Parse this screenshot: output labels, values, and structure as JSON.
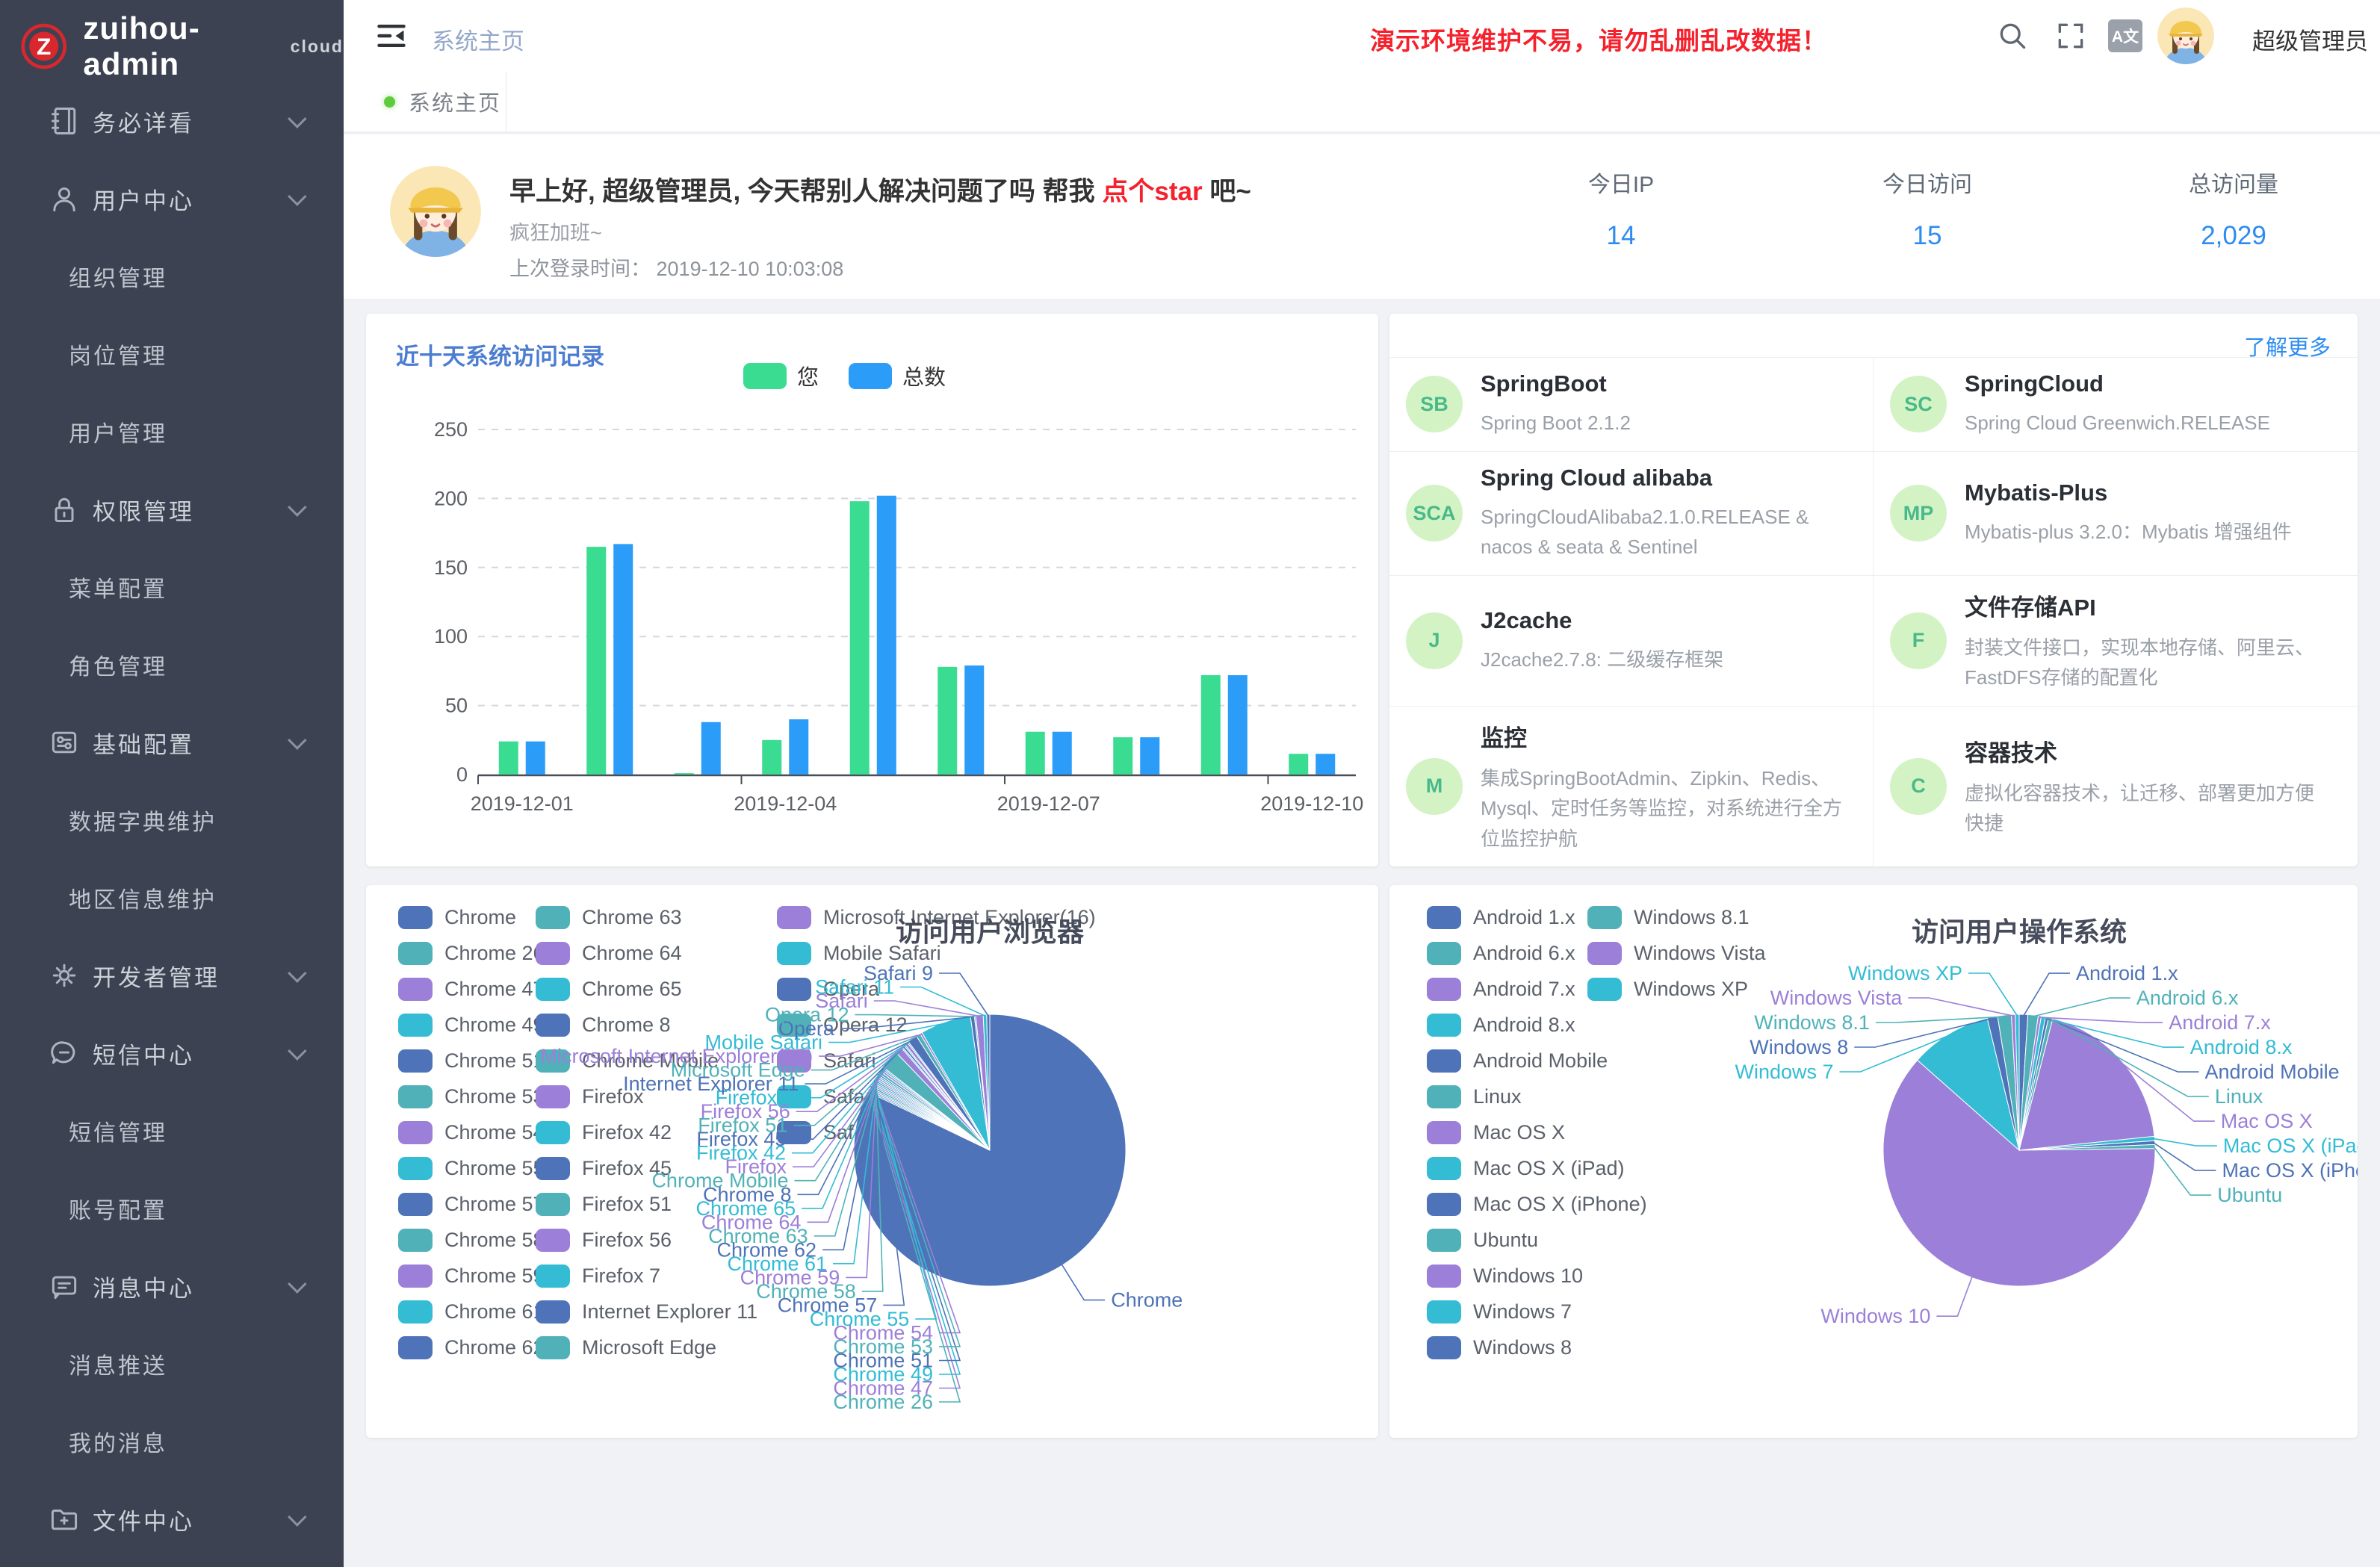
{
  "app": {
    "name": "zuihou-admin",
    "badge": "cloud",
    "logo_letter": "Z"
  },
  "palette": [
    "#4e73b8",
    "#50b2b8",
    "#9c7fd8",
    "#33bcd4"
  ],
  "header": {
    "breadcrumb": "系统主页",
    "warning": "演示环境维护不易，请勿乱删乱改数据！",
    "username": "超级管理员",
    "font_chip": "A文"
  },
  "tabbar": {
    "active": "系统主页"
  },
  "greeting": {
    "hello": "早上好, 超级管理员, 今天帮别人解决问题了吗 帮我",
    "star": "点个star",
    "suffix": "吧~",
    "mood": "疯狂加班~",
    "last_login_label": "上次登录时间：",
    "last_login_value": "2019-12-10 10:03:08"
  },
  "stats": [
    {
      "label": "今日IP",
      "value": "14"
    },
    {
      "label": "今日访问",
      "value": "15"
    },
    {
      "label": "总访问量",
      "value": "2,029"
    }
  ],
  "sidebar": {
    "items": [
      {
        "type": "group",
        "icon": "notebook",
        "label": "务必详看"
      },
      {
        "type": "group",
        "icon": "user",
        "label": "用户中心"
      },
      {
        "type": "child",
        "label": "组织管理"
      },
      {
        "type": "child",
        "label": "岗位管理"
      },
      {
        "type": "child",
        "label": "用户管理"
      },
      {
        "type": "group",
        "icon": "lock",
        "label": "权限管理"
      },
      {
        "type": "child",
        "label": "菜单配置"
      },
      {
        "type": "child",
        "label": "角色管理"
      },
      {
        "type": "group",
        "icon": "sliders",
        "label": "基础配置"
      },
      {
        "type": "child",
        "label": "数据字典维护"
      },
      {
        "type": "child",
        "label": "地区信息维护"
      },
      {
        "type": "group",
        "icon": "gear",
        "label": "开发者管理"
      },
      {
        "type": "group",
        "icon": "sms",
        "label": "短信中心"
      },
      {
        "type": "child",
        "label": "短信管理"
      },
      {
        "type": "child",
        "label": "账号配置"
      },
      {
        "type": "group",
        "icon": "message",
        "label": "消息中心"
      },
      {
        "type": "child",
        "label": "消息推送"
      },
      {
        "type": "child",
        "label": "我的消息"
      },
      {
        "type": "group",
        "icon": "folder",
        "label": "文件中心"
      }
    ]
  },
  "tech": {
    "more": "了解更多",
    "cards": [
      {
        "badge": "SB",
        "title": "SpringBoot",
        "desc": "Spring Boot 2.1.2"
      },
      {
        "badge": "SC",
        "title": "SpringCloud",
        "desc": "Spring Cloud Greenwich.RELEASE"
      },
      {
        "badge": "SCA",
        "title": "Spring Cloud alibaba",
        "desc": "SpringCloudAlibaba2.1.0.RELEASE & nacos & seata & Sentinel"
      },
      {
        "badge": "MP",
        "title": "Mybatis-Plus",
        "desc": "Mybatis-plus 3.2.0：Mybatis 增强组件"
      },
      {
        "badge": "J",
        "title": "J2cache",
        "desc": "J2cache2.7.8: 二级缓存框架"
      },
      {
        "badge": "F",
        "title": "文件存储API",
        "desc": "封装文件接口，实现本地存储、阿里云、FastDFS存储的配置化"
      },
      {
        "badge": "M",
        "title": "监控",
        "desc": "集成SpringBootAdmin、Zipkin、Redis、Mysql、定时任务等监控，对系统进行全方位监控护航"
      },
      {
        "badge": "C",
        "title": "容器技术",
        "desc": "虚拟化容器技术，让迁移、部署更加方便快捷"
      }
    ]
  },
  "chart_data": [
    {
      "type": "bar",
      "title": "近十天系统访问记录",
      "categories": [
        "2019-12-01",
        "2019-12-02",
        "2019-12-03",
        "2019-12-04",
        "2019-12-05",
        "2019-12-06",
        "2019-12-07",
        "2019-12-08",
        "2019-12-09",
        "2019-12-10"
      ],
      "x_label_shown": [
        "2019-12-01",
        "2019-12-04",
        "2019-12-07",
        "2019-12-10"
      ],
      "series": [
        {
          "name": "您",
          "color": "#3adc92",
          "values": [
            24,
            165,
            1,
            25,
            198,
            78,
            31,
            27,
            72,
            15
          ]
        },
        {
          "name": "总数",
          "color": "#2b9cf7",
          "values": [
            24,
            167,
            38,
            40,
            202,
            79,
            31,
            27,
            72,
            15
          ]
        }
      ],
      "ylim": [
        0,
        250
      ],
      "ytick": 50,
      "grid": "dashed",
      "legend_position": "top-center"
    },
    {
      "type": "pie",
      "title": "访问用户浏览器",
      "unit": "percent (estimated from slice angles)",
      "legend_position": "left, 3 columns",
      "items": [
        {
          "name": "Chrome",
          "value": 79.0
        },
        {
          "name": "Chrome 26",
          "value": 0.2
        },
        {
          "name": "Chrome 47",
          "value": 0.2
        },
        {
          "name": "Chrome 49",
          "value": 0.2
        },
        {
          "name": "Chrome 51",
          "value": 0.2
        },
        {
          "name": "Chrome 53",
          "value": 0.2
        },
        {
          "name": "Chrome 54",
          "value": 0.2
        },
        {
          "name": "Chrome 55",
          "value": 0.2
        },
        {
          "name": "Chrome 57",
          "value": 0.2
        },
        {
          "name": "Chrome 58",
          "value": 0.2
        },
        {
          "name": "Chrome 59",
          "value": 0.2
        },
        {
          "name": "Chrome 61",
          "value": 0.2
        },
        {
          "name": "Chrome 62",
          "value": 0.2
        },
        {
          "name": "Chrome 63",
          "value": 0.3
        },
        {
          "name": "Chrome 64",
          "value": 0.25
        },
        {
          "name": "Chrome 65",
          "value": 0.2
        },
        {
          "name": "Chrome 8",
          "value": 0.15
        },
        {
          "name": "Chrome Mobile",
          "value": 2.2
        },
        {
          "name": "Firefox",
          "value": 0.8
        },
        {
          "name": "Firefox 42",
          "value": 0.15
        },
        {
          "name": "Firefox 45",
          "value": 0.25
        },
        {
          "name": "Firefox 51",
          "value": 0.15
        },
        {
          "name": "Firefox 56",
          "value": 0.35
        },
        {
          "name": "Firefox 7",
          "value": 0.15
        },
        {
          "name": "Internet Explorer 11",
          "value": 1.1
        },
        {
          "name": "Microsoft Edge",
          "value": 0.5
        },
        {
          "name": "Microsoft Internet Explorer(16)",
          "value": 0.25
        },
        {
          "name": "Mobile Safari",
          "value": 5.8
        },
        {
          "name": "Opera",
          "value": 0.45
        },
        {
          "name": "Opera 12",
          "value": 0.15
        },
        {
          "name": "Safari",
          "value": 0.85
        },
        {
          "name": "Safari 11",
          "value": 0.4
        },
        {
          "name": "Safari 9",
          "value": 0.35
        }
      ],
      "legend_columns": [
        13,
        13,
        7
      ]
    },
    {
      "type": "pie",
      "title": "访问用户操作系统",
      "unit": "percent (estimated from slice angles)",
      "legend_position": "left, 2 columns",
      "items": [
        {
          "name": "Android 1.x",
          "value": 1.0
        },
        {
          "name": "Android 6.x",
          "value": 1.2
        },
        {
          "name": "Android 7.x",
          "value": 0.35
        },
        {
          "name": "Android 8.x",
          "value": 0.5
        },
        {
          "name": "Android Mobile",
          "value": 0.35
        },
        {
          "name": "Linux",
          "value": 0.5
        },
        {
          "name": "Mac OS X",
          "value": 19.0
        },
        {
          "name": "Mac OS X (iPad)",
          "value": 0.5
        },
        {
          "name": "Mac OS X (iPhone)",
          "value": 0.45
        },
        {
          "name": "Ubuntu",
          "value": 0.45
        },
        {
          "name": "Windows 10",
          "value": 60.5
        },
        {
          "name": "Windows 7",
          "value": 9.5
        },
        {
          "name": "Windows 8",
          "value": 1.2
        },
        {
          "name": "Windows 8.1",
          "value": 1.6
        },
        {
          "name": "Windows Vista",
          "value": 0.45
        },
        {
          "name": "Windows XP",
          "value": 0.45
        }
      ],
      "legend_columns": [
        13,
        3
      ]
    }
  ]
}
